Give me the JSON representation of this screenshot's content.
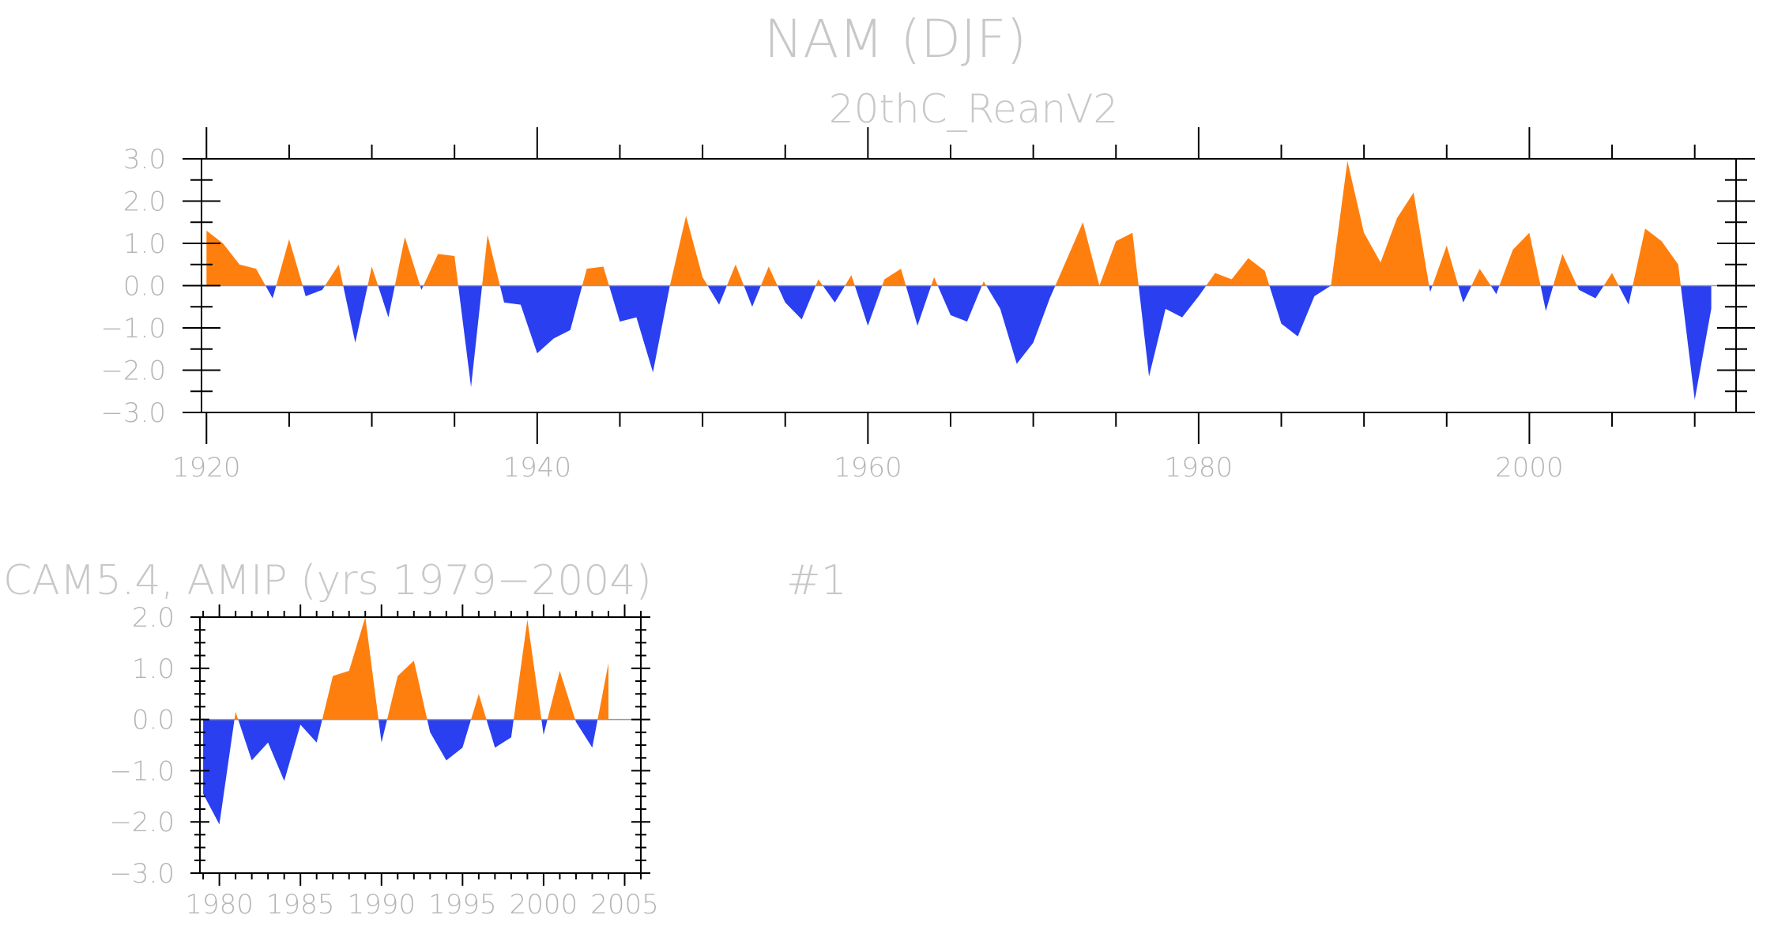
{
  "chart_data": [
    {
      "type": "area",
      "title": "NAM (DJF)",
      "subtitle": "20thC_ReanV2",
      "xlabel": "",
      "ylabel": "",
      "xlim": [
        1919.7,
        2012.5
      ],
      "ylim": [
        -3.0,
        3.0
      ],
      "xticks": [
        1920,
        1940,
        1960,
        1980,
        2000
      ],
      "xtick_labels": [
        "1920",
        "1940",
        "1960",
        "1980",
        "2000"
      ],
      "yticks": [
        3.0,
        2.0,
        1.0,
        0.0,
        -1.0,
        -2.0,
        -3.0
      ],
      "ytick_labels": [
        "3.0",
        "2.0",
        "1.0",
        "0.0",
        "−1.0",
        "−2.0",
        "−3.0"
      ],
      "x": [
        1920,
        1921,
        1922,
        1923,
        1924,
        1925,
        1926,
        1927,
        1928,
        1929,
        1930,
        1931,
        1932,
        1933,
        1934,
        1935,
        1936,
        1937,
        1938,
        1939,
        1940,
        1941,
        1942,
        1943,
        1944,
        1945,
        1946,
        1947,
        1948,
        1949,
        1950,
        1951,
        1952,
        1953,
        1954,
        1955,
        1956,
        1957,
        1958,
        1959,
        1960,
        1961,
        1962,
        1963,
        1964,
        1965,
        1966,
        1967,
        1968,
        1969,
        1970,
        1971,
        1972,
        1973,
        1974,
        1975,
        1976,
        1977,
        1978,
        1979,
        1980,
        1981,
        1982,
        1983,
        1984,
        1985,
        1986,
        1987,
        1988,
        1989,
        1990,
        1991,
        1992,
        1993,
        1994,
        1995,
        1996,
        1997,
        1998,
        1999,
        2000,
        2001,
        2002,
        2003,
        2004,
        2005,
        2006,
        2007,
        2008,
        2009,
        2010,
        2011
      ],
      "values": [
        1.3,
        1.0,
        0.5,
        0.4,
        -0.3,
        1.1,
        -0.25,
        -0.1,
        0.5,
        -1.35,
        0.45,
        -0.75,
        1.15,
        -0.1,
        0.75,
        0.7,
        -2.4,
        1.2,
        -0.4,
        -0.45,
        -1.6,
        -1.25,
        -1.05,
        0.4,
        0.45,
        -0.85,
        -0.75,
        -2.05,
        -0.05,
        1.65,
        0.2,
        -0.45,
        0.5,
        -0.5,
        0.45,
        -0.4,
        -0.8,
        0.15,
        -0.4,
        0.25,
        -0.95,
        0.15,
        0.4,
        -0.95,
        0.2,
        -0.7,
        -0.85,
        0.1,
        -0.55,
        -1.85,
        -1.35,
        -0.3,
        0.6,
        1.5,
        0.0,
        1.05,
        1.25,
        -2.15,
        -0.55,
        -0.75,
        -0.25,
        0.3,
        0.15,
        0.65,
        0.35,
        -0.9,
        -1.2,
        -0.25,
        0.0,
        2.95,
        1.25,
        0.55,
        1.6,
        2.2,
        -0.15,
        0.95,
        -0.4,
        0.4,
        -0.2,
        0.85,
        1.25,
        -0.6,
        0.75,
        -0.1,
        -0.3,
        0.3,
        -0.45,
        1.35,
        1.05,
        0.5,
        -2.7,
        -0.55
      ],
      "positive_color": "#ff7f0e",
      "negative_color": "#2a3ff0"
    },
    {
      "type": "area",
      "title": "CAM5.4, AMIP (yrs 1979−2004)",
      "panel_label": "#1",
      "xlabel": "",
      "ylabel": "",
      "xlim": [
        1978.8,
        2006
      ],
      "ylim": [
        -3.0,
        2.0
      ],
      "xticks": [
        1980,
        1985,
        1990,
        1995,
        2000,
        2005
      ],
      "xtick_labels": [
        "1980",
        "1985",
        "1990",
        "1995",
        "2000",
        "2005"
      ],
      "yticks": [
        2.0,
        1.0,
        0.0,
        -1.0,
        -2.0,
        -3.0
      ],
      "ytick_labels": [
        "2.0",
        "1.0",
        "0.0",
        "−1.0",
        "−2.0",
        "−3.0"
      ],
      "x": [
        1979,
        1980,
        1981,
        1982,
        1983,
        1984,
        1985,
        1986,
        1987,
        1988,
        1989,
        1990,
        1991,
        1992,
        1993,
        1994,
        1995,
        1996,
        1997,
        1998,
        1999,
        2000,
        2001,
        2002,
        2003,
        2004
      ],
      "values": [
        -1.45,
        -2.05,
        0.15,
        -0.8,
        -0.45,
        -1.2,
        -0.1,
        -0.45,
        0.85,
        0.95,
        2.0,
        -0.45,
        0.85,
        1.15,
        -0.25,
        -0.8,
        -0.55,
        0.5,
        -0.55,
        -0.35,
        1.95,
        -0.3,
        0.95,
        -0.05,
        -0.55,
        1.1
      ],
      "positive_color": "#ff7f0e",
      "negative_color": "#2a3ff0"
    }
  ]
}
